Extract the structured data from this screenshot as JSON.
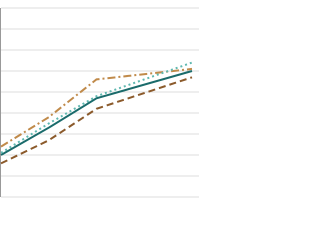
{
  "chart_data": {
    "type": "line",
    "x": [
      0,
      1,
      2,
      4
    ],
    "xlim": [
      0,
      4
    ],
    "ylim": [
      0,
      90
    ],
    "yticks": [
      0,
      10,
      20,
      30,
      40,
      50,
      60,
      70,
      80,
      90
    ],
    "grid": true,
    "series": [
      {
        "color": "#1a6b6b",
        "dash": "solid",
        "values": [
          20,
          33,
          47,
          60
        ]
      },
      {
        "color": "#8b5a2b",
        "dash": "dashed",
        "values": [
          16,
          27,
          42,
          57
        ]
      },
      {
        "color": "#c08a4a",
        "dash": "dashdot",
        "values": [
          24,
          38,
          56,
          61
        ]
      },
      {
        "color": "#5fb8b0",
        "dash": "dotted",
        "values": [
          21,
          35,
          48,
          64
        ]
      }
    ]
  }
}
